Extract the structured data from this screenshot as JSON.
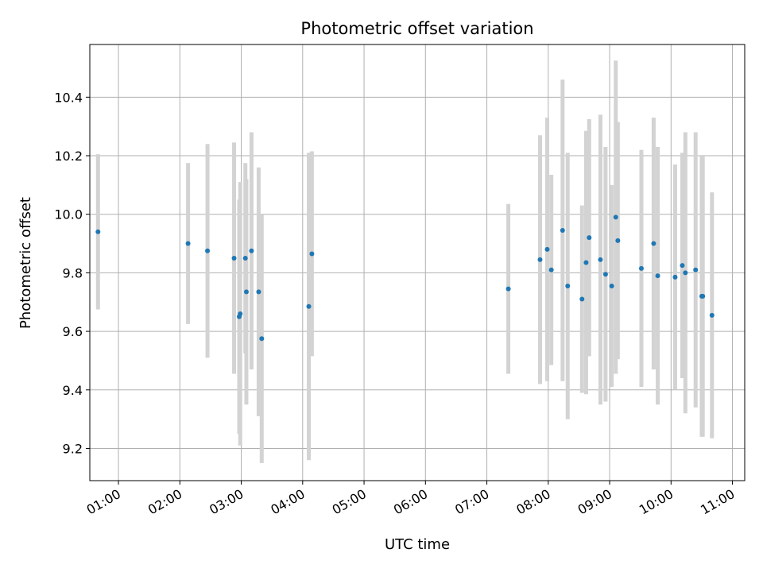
{
  "chart_data": {
    "type": "scatter",
    "title": "Photometric offset variation",
    "xlabel": "UTC time",
    "ylabel": "Photometric offset",
    "x_axis": {
      "kind": "time",
      "range": [
        "00:32",
        "11:12"
      ],
      "ticks": [
        "01:00",
        "02:00",
        "03:00",
        "04:00",
        "05:00",
        "06:00",
        "07:00",
        "08:00",
        "09:00",
        "10:00",
        "11:00"
      ]
    },
    "y_axis": {
      "range": [
        9.09,
        10.58
      ],
      "ticks": [
        "9.2",
        "9.4",
        "9.6",
        "9.8",
        "10.0",
        "10.2",
        "10.4"
      ]
    },
    "grid": true,
    "colors": {
      "point": "#1f77b4",
      "errorbar": "#d3d3d3",
      "grid": "#b0b0b0"
    },
    "points": [
      {
        "x": "00:40",
        "y": 9.94,
        "err": 0.265
      },
      {
        "x": "02:08",
        "y": 9.9,
        "err": 0.275
      },
      {
        "x": "02:27",
        "y": 9.875,
        "err": 0.365
      },
      {
        "x": "02:53",
        "y": 9.85,
        "err": 0.395
      },
      {
        "x": "02:58",
        "y": 9.65,
        "err": 0.4
      },
      {
        "x": "02:59",
        "y": 9.66,
        "err": 0.45
      },
      {
        "x": "03:04",
        "y": 9.85,
        "err": 0.325
      },
      {
        "x": "03:05",
        "y": 9.735,
        "err": 0.385
      },
      {
        "x": "03:10",
        "y": 9.875,
        "err": 0.405
      },
      {
        "x": "03:17",
        "y": 9.735,
        "err": 0.425
      },
      {
        "x": "03:20",
        "y": 9.575,
        "err": 0.425
      },
      {
        "x": "04:06",
        "y": 9.685,
        "err": 0.525
      },
      {
        "x": "04:09",
        "y": 9.865,
        "err": 0.35
      },
      {
        "x": "07:21",
        "y": 9.745,
        "err": 0.29
      },
      {
        "x": "07:52",
        "y": 9.845,
        "err": 0.425
      },
      {
        "x": "07:59",
        "y": 9.88,
        "err": 0.45
      },
      {
        "x": "08:03",
        "y": 9.81,
        "err": 0.325
      },
      {
        "x": "08:14",
        "y": 9.945,
        "err": 0.515
      },
      {
        "x": "08:19",
        "y": 9.755,
        "err": 0.455
      },
      {
        "x": "08:33",
        "y": 9.71,
        "err": 0.32
      },
      {
        "x": "08:37",
        "y": 9.835,
        "err": 0.45
      },
      {
        "x": "08:40",
        "y": 9.92,
        "err": 0.405
      },
      {
        "x": "08:51",
        "y": 9.845,
        "err": 0.495
      },
      {
        "x": "08:56",
        "y": 9.795,
        "err": 0.435
      },
      {
        "x": "09:02",
        "y": 9.755,
        "err": 0.345
      },
      {
        "x": "09:06",
        "y": 9.99,
        "err": 0.535
      },
      {
        "x": "09:08",
        "y": 9.91,
        "err": 0.405
      },
      {
        "x": "09:31",
        "y": 9.815,
        "err": 0.405
      },
      {
        "x": "09:43",
        "y": 9.9,
        "err": 0.43
      },
      {
        "x": "09:47",
        "y": 9.79,
        "err": 0.44
      },
      {
        "x": "10:04",
        "y": 9.785,
        "err": 0.385
      },
      {
        "x": "10:11",
        "y": 9.825,
        "err": 0.385
      },
      {
        "x": "10:14",
        "y": 9.8,
        "err": 0.48
      },
      {
        "x": "10:24",
        "y": 9.81,
        "err": 0.47
      },
      {
        "x": "10:30",
        "y": 9.72,
        "err": 0.48
      },
      {
        "x": "10:31",
        "y": 9.72,
        "err": 0.48
      },
      {
        "x": "10:40",
        "y": 9.655,
        "err": 0.42
      }
    ]
  }
}
